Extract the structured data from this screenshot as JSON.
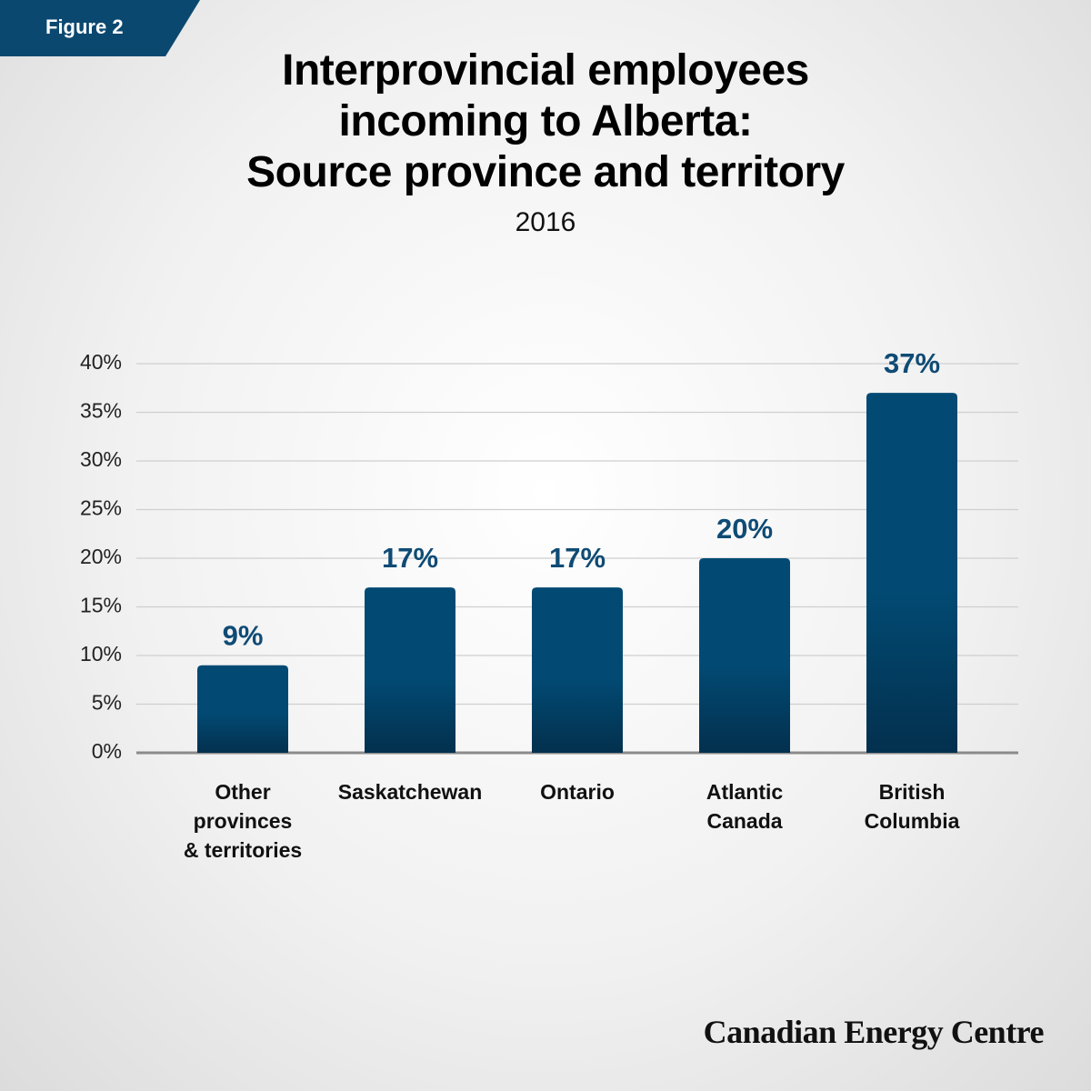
{
  "figure_label": "Figure 2",
  "credit": "Canadian Energy Centre",
  "chart_data": {
    "type": "bar",
    "title": "Interprovincial employees\nincoming to Alberta:\nSource province and territory",
    "subtitle": "2016",
    "categories": [
      "Other\nprovinces\n& territories",
      "Saskatchewan",
      "Ontario",
      "Atlantic\nCanada",
      "British\nColumbia"
    ],
    "values": [
      9,
      17,
      17,
      20,
      37
    ],
    "value_labels": [
      "9%",
      "17%",
      "17%",
      "20%",
      "37%"
    ],
    "color": "#024a73",
    "ylim": [
      0,
      40
    ],
    "yticks": [
      {
        "value": 0,
        "label": "0%"
      },
      {
        "value": 5,
        "label": "5%"
      },
      {
        "value": 10,
        "label": "10%"
      },
      {
        "value": 15,
        "label": "15%"
      },
      {
        "value": 20,
        "label": "20%"
      },
      {
        "value": 25,
        "label": "25%"
      },
      {
        "value": 30,
        "label": "30%"
      },
      {
        "value": 35,
        "label": "35%"
      },
      {
        "value": 40,
        "label": "40%"
      }
    ],
    "grid": true
  }
}
